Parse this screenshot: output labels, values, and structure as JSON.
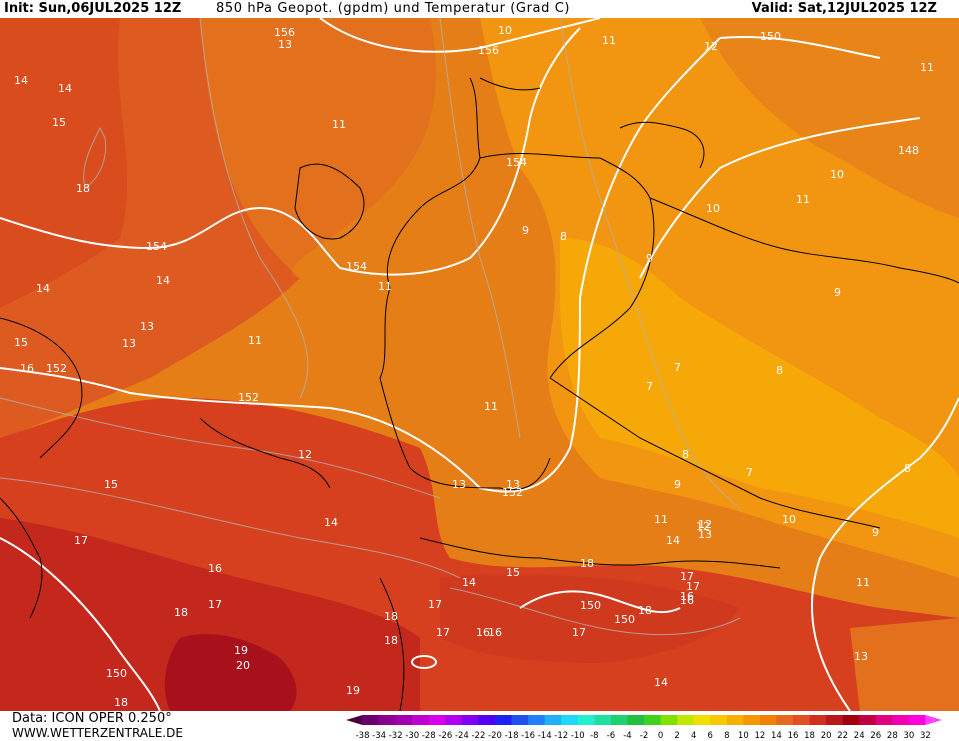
{
  "header": {
    "init": "Init: Sun,06JUL2025 12Z",
    "title": "850 hPa Geopot. (gpdm) und Temperatur (Grad C)",
    "valid": "Valid: Sat,12JUL2025 12Z"
  },
  "footer": {
    "source": "Data: ICON OPER 0.250°",
    "website": "WWW.WETTERZENTRALE.DE"
  },
  "colorbar": {
    "ticks": [
      "-38",
      "-34",
      "-32",
      "-30",
      "-28",
      "-26",
      "-24",
      "-22",
      "-20",
      "-18",
      "-16",
      "-14",
      "-12",
      "-10",
      "-8",
      "-6",
      "-4",
      "-2",
      "0",
      "2",
      "4",
      "6",
      "8",
      "10",
      "12",
      "14",
      "16",
      "18",
      "20",
      "22",
      "24",
      "26",
      "28",
      "30",
      "32"
    ],
    "colors": [
      "#4a0040",
      "#6a0070",
      "#8a0090",
      "#a000b0",
      "#c000d0",
      "#d800e8",
      "#b000f0",
      "#8000f0",
      "#5000f0",
      "#2020f0",
      "#2050f0",
      "#2080f8",
      "#20b0f8",
      "#20d8f8",
      "#20f0d0",
      "#20e0a0",
      "#20d070",
      "#20c040",
      "#40d020",
      "#80e000",
      "#c0e800",
      "#f0e000",
      "#f8c800",
      "#f8b000",
      "#f89800",
      "#f08000",
      "#e86820",
      "#e05020",
      "#d03020",
      "#b81818",
      "#a00010",
      "#c00040",
      "#e00080",
      "#f000b0",
      "#ff00e0",
      "#ff40ff"
    ]
  },
  "map": {
    "colors": {
      "zone_20": "#a8101c",
      "zone_18": "#c4281c",
      "zone_16": "#d6401e",
      "zone_14": "#dd5a20",
      "zone_12": "#e2701c",
      "zone_10": "#e68018",
      "zone_8": "#f29510",
      "zone_6": "#f6a808"
    },
    "temperature_labels": [
      "14",
      "14",
      "15",
      "18",
      "14",
      "14",
      "15",
      "13",
      "15",
      "16",
      "17",
      "18",
      "19",
      "20",
      "19",
      "18",
      "18",
      "17",
      "17",
      "16",
      "16",
      "18",
      "17",
      "17",
      "16",
      "18",
      "17",
      "14",
      "15",
      "14",
      "12",
      "13",
      "13",
      "12",
      "13",
      "11",
      "11",
      "11",
      "11",
      "11",
      "11",
      "9",
      "8",
      "9",
      "7",
      "7",
      "8",
      "8",
      "8",
      "9",
      "9",
      "9",
      "7",
      "10",
      "10",
      "10",
      "11",
      "11",
      "11",
      "12",
      "12",
      "13",
      "14",
      "13",
      "14",
      "16",
      "18",
      "13",
      "17",
      "16"
    ],
    "geopotential_labels": [
      "156",
      "156",
      "150",
      "148",
      "154",
      "154",
      "154",
      "152",
      "152",
      "152",
      "150",
      "150",
      "150",
      "10"
    ]
  }
}
